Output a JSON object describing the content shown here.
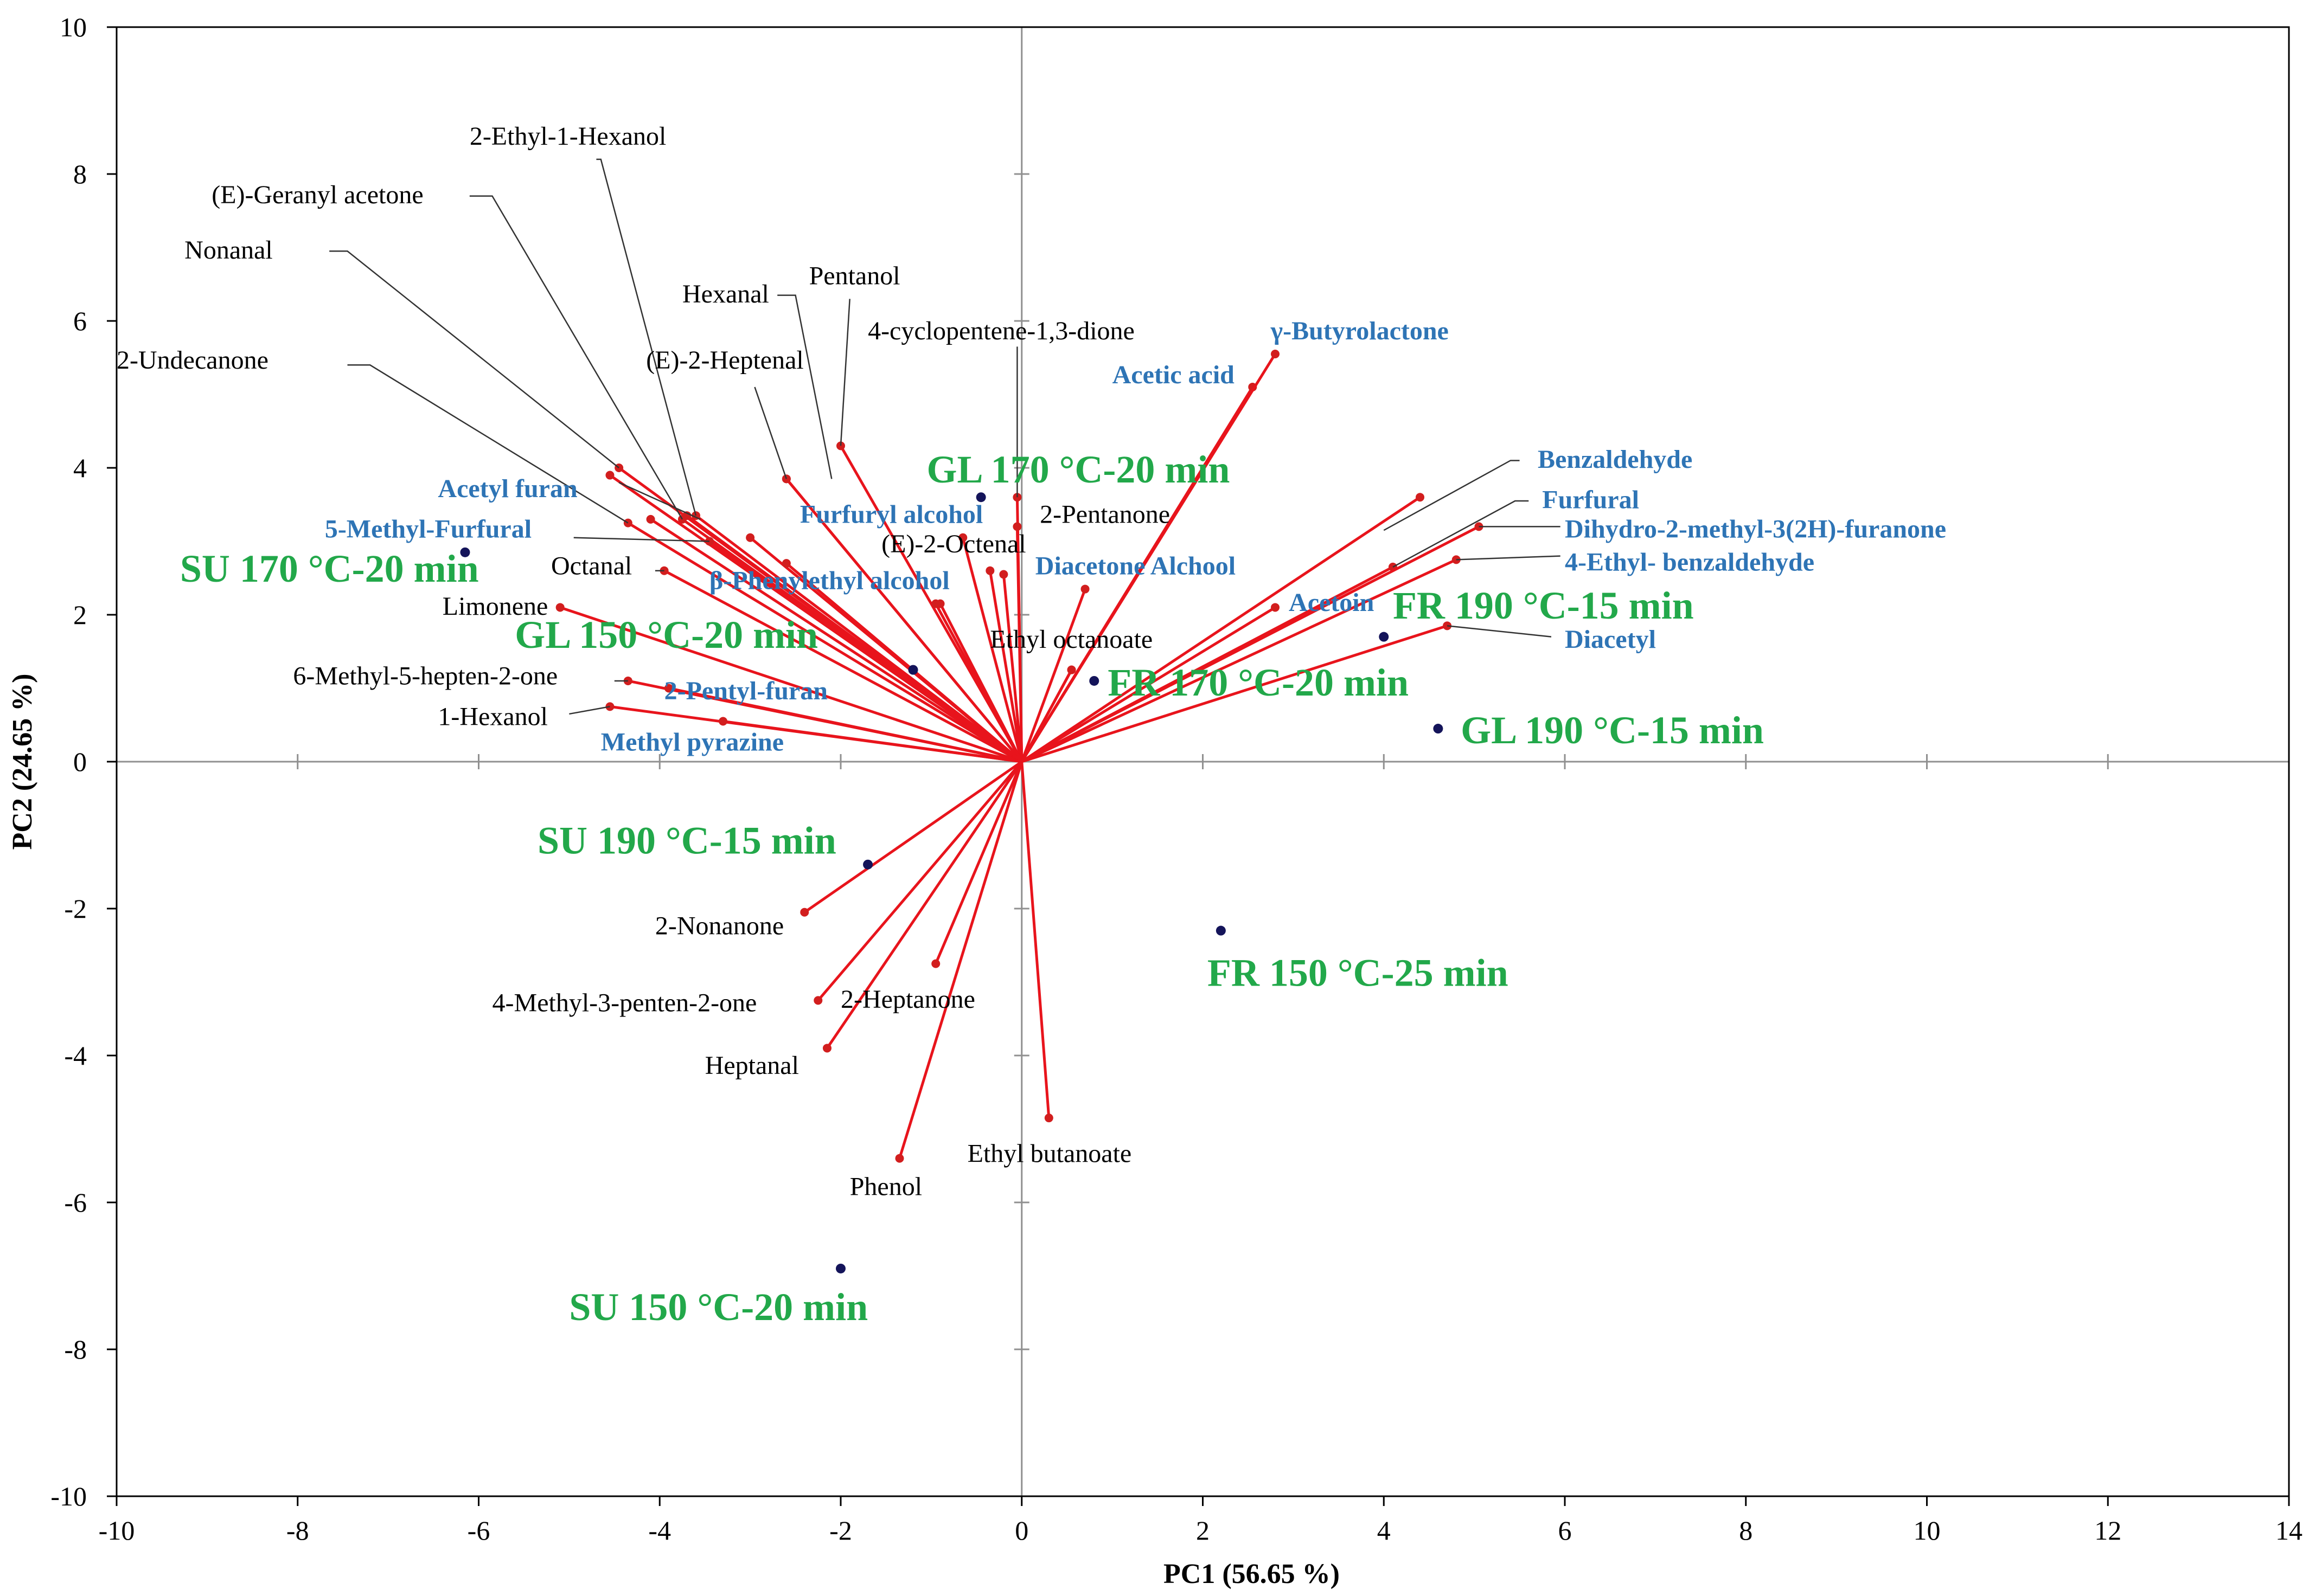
{
  "chart_data": {
    "type": "scatter",
    "subtype": "pca-biplot",
    "xlabel": "PC1 (56.65 %)",
    "ylabel": "PC2 (24.65 %)",
    "xlim": [
      -10,
      14
    ],
    "ylim": [
      -10,
      10
    ],
    "xticks": [
      -10,
      -8,
      -6,
      -4,
      -2,
      0,
      2,
      4,
      6,
      8,
      10,
      12,
      14
    ],
    "yticks": [
      -10,
      -8,
      -6,
      -4,
      -2,
      0,
      2,
      4,
      6,
      8,
      10
    ],
    "xtick_labels": [
      "-10",
      "-8",
      "-6",
      "-4",
      "-2",
      "0",
      "2",
      "4",
      "6",
      "8",
      "10",
      "12",
      "14"
    ],
    "ytick_labels": [
      "-10",
      "-8",
      "-6",
      "-4",
      "-2",
      "0",
      "2",
      "4",
      "6",
      "8",
      "10"
    ],
    "colors": {
      "loading": "#e8141c",
      "loading_point": "#d21e1e",
      "sample_point": "#14145a",
      "sample_label": "#22a84a",
      "blue_label": "#2e74b5",
      "plain_label": "#000000",
      "leader": "#333333",
      "axis": "#000000",
      "zero_line": "#909090"
    },
    "samples": [
      {
        "name": "SU 170 °C-20 min",
        "x": -6.15,
        "y": 2.85,
        "lx": -9.3,
        "ly": 2.45
      },
      {
        "name": "GL 150 °C-20 min",
        "x": -1.2,
        "y": 1.25,
        "lx": -5.6,
        "ly": 1.55
      },
      {
        "name": "GL 170 °C-20 min",
        "x": -0.45,
        "y": 3.6,
        "lx": -1.05,
        "ly": 3.8
      },
      {
        "name": "FR 170 °C-20 min",
        "x": 0.8,
        "y": 1.1,
        "lx": 0.95,
        "ly": 0.9
      },
      {
        "name": "FR 190 °C-15 min",
        "x": 4.0,
        "y": 1.7,
        "lx": 4.1,
        "ly": 1.95
      },
      {
        "name": "GL 190 °C-15 min",
        "x": 4.6,
        "y": 0.45,
        "lx": 4.85,
        "ly": 0.25
      },
      {
        "name": "SU 190 °C-15 min",
        "x": -1.7,
        "y": -1.4,
        "lx": -5.35,
        "ly": -1.25
      },
      {
        "name": "FR 150 °C-25 min",
        "x": 2.2,
        "y": -2.3,
        "lx": 2.05,
        "ly": -3.05
      },
      {
        "name": "SU 150 °C-20 min",
        "x": -2.0,
        "y": -6.9,
        "lx": -5.0,
        "ly": -7.6
      }
    ],
    "loadings": [
      {
        "name": "2-Ethyl-1-Hexanol",
        "x": -3.6,
        "y": 3.35,
        "color": "black",
        "bold": false,
        "lx": -6.1,
        "ly": 8.4,
        "leader": [
          [
            -4.7,
            8.2
          ],
          [
            -4.65,
            8.2
          ],
          [
            -3.6,
            3.35
          ]
        ]
      },
      {
        "name": "(E)-Geranyl acetone",
        "x": -3.75,
        "y": 3.3,
        "color": "black",
        "bold": false,
        "lx": -8.95,
        "ly": 7.6,
        "leader": [
          [
            -6.1,
            7.7
          ],
          [
            -5.85,
            7.7
          ],
          [
            -3.75,
            3.3
          ]
        ]
      },
      {
        "name": "Nonanal",
        "x": -4.45,
        "y": 4.0,
        "color": "black",
        "bold": false,
        "lx": -9.25,
        "ly": 6.85,
        "leader": [
          [
            -7.65,
            6.95
          ],
          [
            -7.45,
            6.95
          ],
          [
            -4.45,
            4.0
          ]
        ]
      },
      {
        "name": "2-Undecanone",
        "x": -4.35,
        "y": 3.25,
        "color": "black",
        "bold": false,
        "lx": -10.0,
        "ly": 5.35,
        "leader": [
          [
            -7.45,
            5.4
          ],
          [
            -7.2,
            5.4
          ],
          [
            -4.35,
            3.25
          ]
        ]
      },
      {
        "name": "Hexanal",
        "x": -2.6,
        "y": 3.85,
        "color": "black",
        "bold": false,
        "lx": -3.75,
        "ly": 6.25,
        "leader": [
          [
            -2.7,
            6.35
          ],
          [
            -2.5,
            6.35
          ],
          [
            -2.1,
            3.85
          ]
        ]
      },
      {
        "name": "Pentanol",
        "x": -2.0,
        "y": 4.3,
        "color": "black",
        "bold": false,
        "lx": -2.35,
        "ly": 6.5,
        "leader": [
          [
            -1.9,
            6.3
          ],
          [
            -2.0,
            4.3
          ]
        ]
      },
      {
        "name": "4-cyclopentene-1,3-dione",
        "x": -0.05,
        "y": 3.6,
        "color": "black",
        "bold": false,
        "lx": -1.7,
        "ly": 5.75,
        "leader": [
          [
            -0.05,
            5.65
          ],
          [
            -0.05,
            3.6
          ]
        ]
      },
      {
        "name": "(E)-2-Heptenal",
        "x": -2.6,
        "y": 3.85,
        "color": "black",
        "bold": false,
        "lx": -4.15,
        "ly": 5.35,
        "leader": [
          [
            -2.95,
            5.1
          ],
          [
            -2.6,
            3.85
          ]
        ]
      },
      {
        "name": "Acetic acid",
        "x": 2.55,
        "y": 5.1,
        "color": "blue",
        "bold": true,
        "lx": 1.0,
        "ly": 5.15,
        "leader": []
      },
      {
        "name": "γ-Butyrolactone",
        "x": 2.8,
        "y": 5.55,
        "color": "blue",
        "bold": true,
        "lx": 2.75,
        "ly": 5.75,
        "leader": []
      },
      {
        "name": "Benzaldehyde",
        "x": 4.4,
        "y": 3.6,
        "color": "blue",
        "bold": true,
        "lx": 5.7,
        "ly": 4.0,
        "leader": [
          [
            5.5,
            4.1
          ],
          [
            5.4,
            4.1
          ],
          [
            4.0,
            3.15
          ]
        ]
      },
      {
        "name": "Furfural",
        "x": 4.1,
        "y": 2.65,
        "color": "blue",
        "bold": true,
        "lx": 5.75,
        "ly": 3.45,
        "leader": [
          [
            5.6,
            3.55
          ],
          [
            5.45,
            3.55
          ],
          [
            4.1,
            2.65
          ]
        ]
      },
      {
        "name": "Dihydro-2-methyl-3(2H)-furanone",
        "x": 5.05,
        "y": 3.2,
        "color": "blue",
        "bold": true,
        "lx": 6.0,
        "ly": 3.05,
        "leader": [
          [
            5.95,
            3.2
          ],
          [
            5.05,
            3.2
          ]
        ]
      },
      {
        "name": "4-Ethyl- benzaldehyde",
        "x": 4.8,
        "y": 2.75,
        "color": "blue",
        "bold": true,
        "lx": 6.0,
        "ly": 2.6,
        "leader": [
          [
            5.95,
            2.8
          ],
          [
            4.8,
            2.75
          ]
        ]
      },
      {
        "name": "Diacetyl",
        "x": 4.7,
        "y": 1.85,
        "color": "blue",
        "bold": true,
        "lx": 6.0,
        "ly": 1.55,
        "leader": [
          [
            5.85,
            1.7
          ],
          [
            4.7,
            1.85
          ]
        ]
      },
      {
        "name": "Acetoin",
        "x": 2.8,
        "y": 2.1,
        "color": "blue",
        "bold": true,
        "lx": 2.95,
        "ly": 2.05,
        "leader": []
      },
      {
        "name": "Diacetone Alchool",
        "x": 0.7,
        "y": 2.35,
        "color": "blue",
        "bold": true,
        "lx": 0.15,
        "ly": 2.55,
        "leader": []
      },
      {
        "name": "2-Pentanone",
        "x": -0.05,
        "y": 3.2,
        "color": "black",
        "bold": false,
        "lx": 0.2,
        "ly": 3.25,
        "leader": []
      },
      {
        "name": "(E)-2-Octenal",
        "x": -0.65,
        "y": 3.05,
        "color": "black",
        "bold": false,
        "lx": -1.55,
        "ly": 2.85,
        "leader": []
      },
      {
        "name": "Furfuryl alcohol",
        "x": -0.35,
        "y": 2.6,
        "color": "blue",
        "bold": true,
        "lx": -2.45,
        "ly": 3.25,
        "leader": []
      },
      {
        "name": "β-Phenylethyl alcohol",
        "x": -0.9,
        "y": 2.15,
        "color": "blue",
        "bold": true,
        "lx": -3.45,
        "ly": 2.35,
        "leader": []
      },
      {
        "name": "Ethyl octanoate",
        "x": 0.55,
        "y": 1.25,
        "color": "black",
        "bold": false,
        "lx": -0.35,
        "ly": 1.55,
        "leader": []
      },
      {
        "name": "Acetyl furan",
        "x": -4.55,
        "y": 3.9,
        "color": "blue",
        "bold": true,
        "lx": -6.45,
        "ly": 3.6,
        "leader": [
          [
            -4.45,
            3.8
          ],
          [
            -3.55,
            3.3
          ]
        ]
      },
      {
        "name": "5-Methyl-Furfural",
        "x": -3.45,
        "y": 3.0,
        "color": "blue",
        "bold": true,
        "lx": -7.7,
        "ly": 3.05,
        "leader": [
          [
            -4.95,
            3.05
          ],
          [
            -3.45,
            3.0
          ]
        ]
      },
      {
        "name": "Octanal",
        "x": -3.95,
        "y": 2.6,
        "color": "black",
        "bold": false,
        "lx": -5.2,
        "ly": 2.55,
        "leader": [
          [
            -4.05,
            2.6
          ],
          [
            -3.95,
            2.6
          ]
        ]
      },
      {
        "name": "Limonene",
        "x": -5.1,
        "y": 2.1,
        "color": "black",
        "bold": false,
        "lx": -6.4,
        "ly": 2.0,
        "leader": []
      },
      {
        "name": "6-Methyl-5-hepten-2-one",
        "x": -4.35,
        "y": 1.1,
        "color": "black",
        "bold": false,
        "lx": -8.05,
        "ly": 1.05,
        "leader": [
          [
            -4.5,
            1.1
          ],
          [
            -4.35,
            1.1
          ]
        ]
      },
      {
        "name": "2-Pentyl-furan",
        "x": -3.9,
        "y": 1.0,
        "color": "blue",
        "bold": true,
        "lx": -3.95,
        "ly": 0.85,
        "leader": []
      },
      {
        "name": "1-Hexanol",
        "x": -4.55,
        "y": 0.75,
        "color": "black",
        "bold": false,
        "lx": -6.45,
        "ly": 0.5,
        "leader": [
          [
            -5.0,
            0.65
          ],
          [
            -4.55,
            0.75
          ]
        ]
      },
      {
        "name": "Methyl pyrazine",
        "x": -3.3,
        "y": 0.55,
        "color": "blue",
        "bold": true,
        "lx": -4.65,
        "ly": 0.15,
        "leader": []
      },
      {
        "name": "2-Nonanone",
        "x": -2.4,
        "y": -2.05,
        "color": "black",
        "bold": false,
        "lx": -4.05,
        "ly": -2.35,
        "leader": []
      },
      {
        "name": "4-Methyl-3-penten-2-one",
        "x": -2.25,
        "y": -3.25,
        "color": "black",
        "bold": false,
        "lx": -5.85,
        "ly": -3.4,
        "leader": []
      },
      {
        "name": "2-Heptanone",
        "x": -0.95,
        "y": -2.75,
        "color": "black",
        "bold": false,
        "lx": -2.0,
        "ly": -3.35,
        "leader": []
      },
      {
        "name": "Heptanal",
        "x": -2.15,
        "y": -3.9,
        "color": "black",
        "bold": false,
        "lx": -3.5,
        "ly": -4.25,
        "leader": []
      },
      {
        "name": "Ethyl butanoate",
        "x": 0.3,
        "y": -4.85,
        "color": "black",
        "bold": false,
        "lx": -0.6,
        "ly": -5.45,
        "leader": []
      },
      {
        "name": "Phenol",
        "x": -1.35,
        "y": -5.4,
        "color": "black",
        "bold": false,
        "lx": -1.9,
        "ly": -5.9,
        "leader": []
      }
    ],
    "unlabeled_loadings": [
      [
        -4.1,
        3.3
      ],
      [
        -3.7,
        3.35
      ],
      [
        -3.0,
        3.05
      ],
      [
        -2.6,
        2.7
      ],
      [
        -0.95,
        2.15
      ],
      [
        -0.2,
        2.55
      ],
      [
        0.55,
        1.25
      ]
    ]
  }
}
